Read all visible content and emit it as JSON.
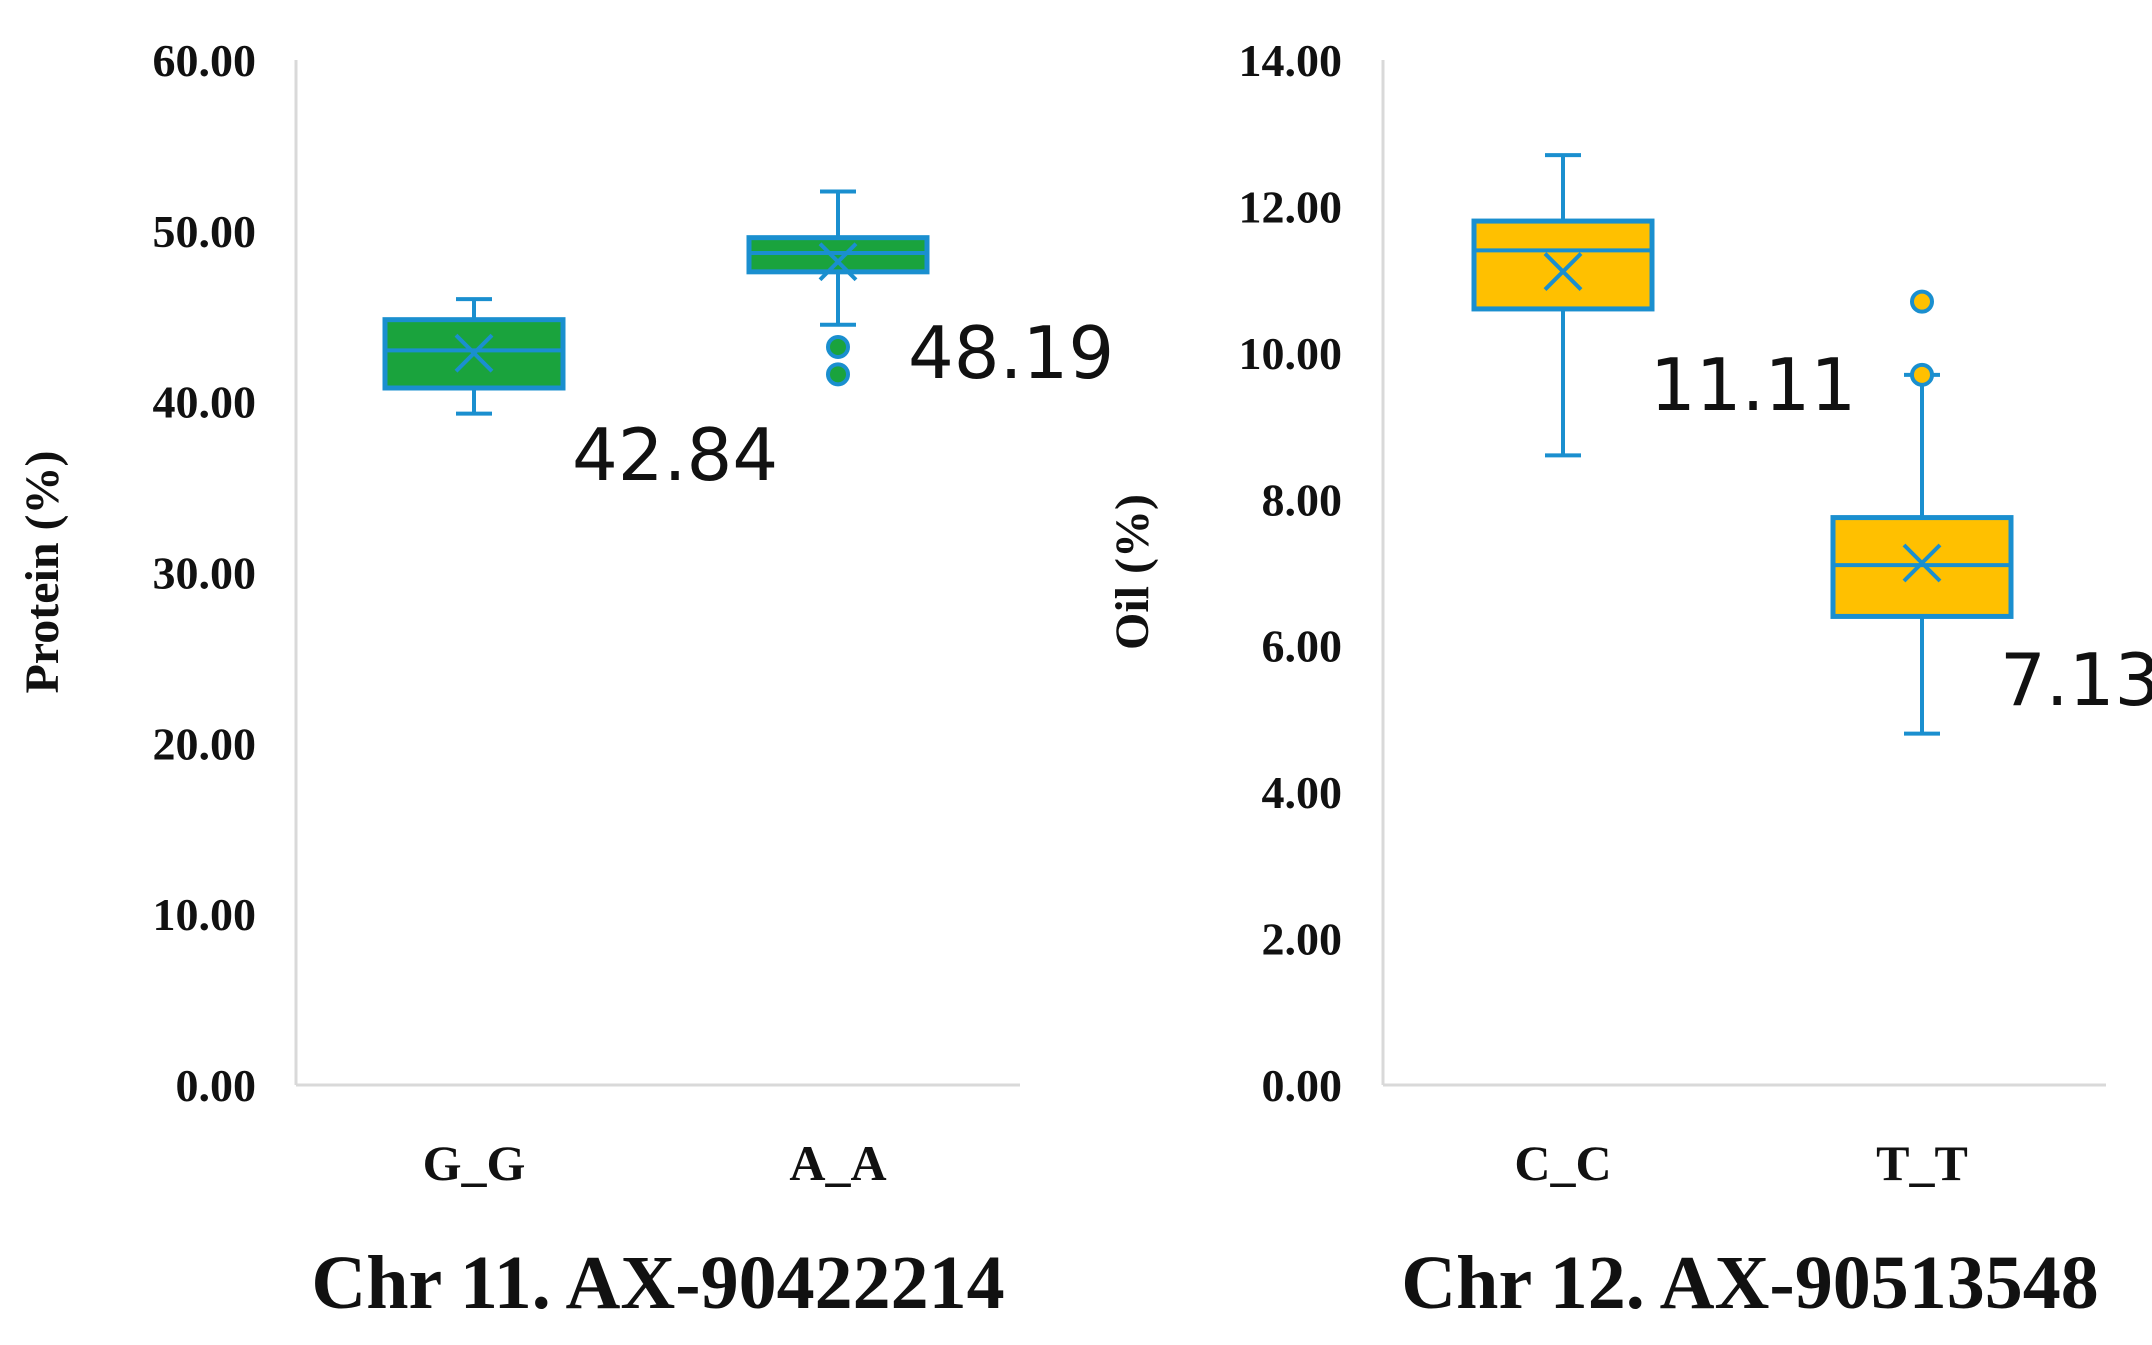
{
  "chart_data": [
    {
      "type": "box",
      "title": "Chr 11. AX-90422214",
      "ylabel": "Protein (%)",
      "xlabel": "",
      "ylim": [
        0,
        60
      ],
      "yticks": [
        "0.00",
        "10.00",
        "20.00",
        "30.00",
        "40.00",
        "50.00",
        "60.00"
      ],
      "categories": [
        "G_G",
        "A_A"
      ],
      "fill_color": "#1aa33d",
      "stroke_color": "#1a8fcf",
      "boxes": [
        {
          "category": "G_G",
          "min": 39.3,
          "q1": 40.8,
          "median": 43.0,
          "q3": 44.8,
          "max": 46.0,
          "mean": 42.84,
          "outliers": [],
          "label": "42.84"
        },
        {
          "category": "A_A",
          "min": 44.5,
          "q1": 47.6,
          "median": 48.7,
          "q3": 49.6,
          "max": 52.3,
          "mean": 48.19,
          "outliers": [
            43.2,
            41.6
          ],
          "label": "48.19"
        }
      ]
    },
    {
      "type": "box",
      "title": "Chr 12. AX-90513548",
      "ylabel": "Oil (%)",
      "xlabel": "",
      "ylim": [
        0,
        14
      ],
      "yticks": [
        "0.00",
        "2.00",
        "4.00",
        "6.00",
        "8.00",
        "10.00",
        "12.00",
        "14.00"
      ],
      "categories": [
        "C_C",
        "T_T"
      ],
      "fill_color": "#ffc000",
      "stroke_color": "#1a8fcf",
      "boxes": [
        {
          "category": "C_C",
          "min": 8.6,
          "q1": 10.6,
          "median": 11.4,
          "q3": 11.8,
          "max": 12.7,
          "mean": 11.11,
          "outliers": [],
          "label": "11.11"
        },
        {
          "category": "T_T",
          "min": 4.8,
          "q1": 6.4,
          "median": 7.1,
          "q3": 7.75,
          "max": 9.7,
          "mean": 7.13,
          "outliers": [
            10.7,
            9.7
          ],
          "label": "7.13"
        }
      ]
    }
  ]
}
